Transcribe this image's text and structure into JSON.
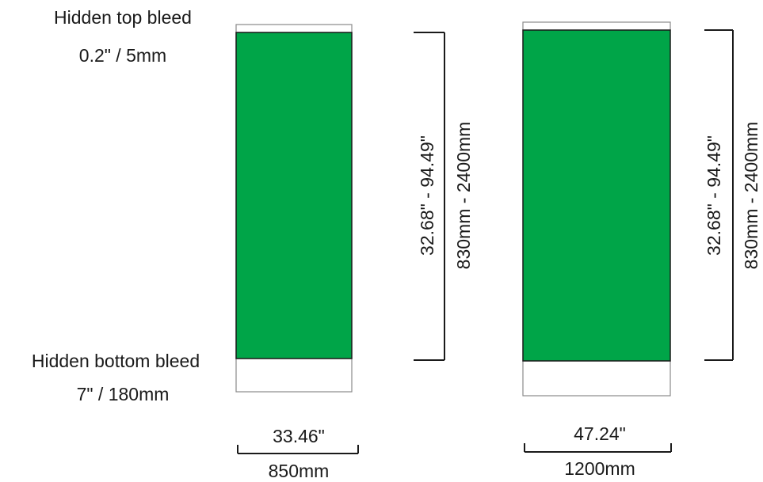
{
  "labels": {
    "top_bleed_title": "Hidden top bleed",
    "top_bleed_value": "0.2\" / 5mm",
    "bottom_bleed_title": "Hidden bottom bleed",
    "bottom_bleed_value": "7\" / 180mm"
  },
  "banners": [
    {
      "height_inches": "32.68\" - 94.49\"",
      "height_mm": "830mm - 2400mm",
      "width_inches": "33.46\"",
      "width_mm": "850mm"
    },
    {
      "height_inches": "32.68\" - 94.49\"",
      "height_mm": "830mm - 2400mm",
      "width_inches": "47.24\"",
      "width_mm": "1200mm"
    }
  ],
  "colors": {
    "banner_fill": "#00A548",
    "outline": "#1a1a1a",
    "bleed_outline": "#8a8a8a"
  }
}
